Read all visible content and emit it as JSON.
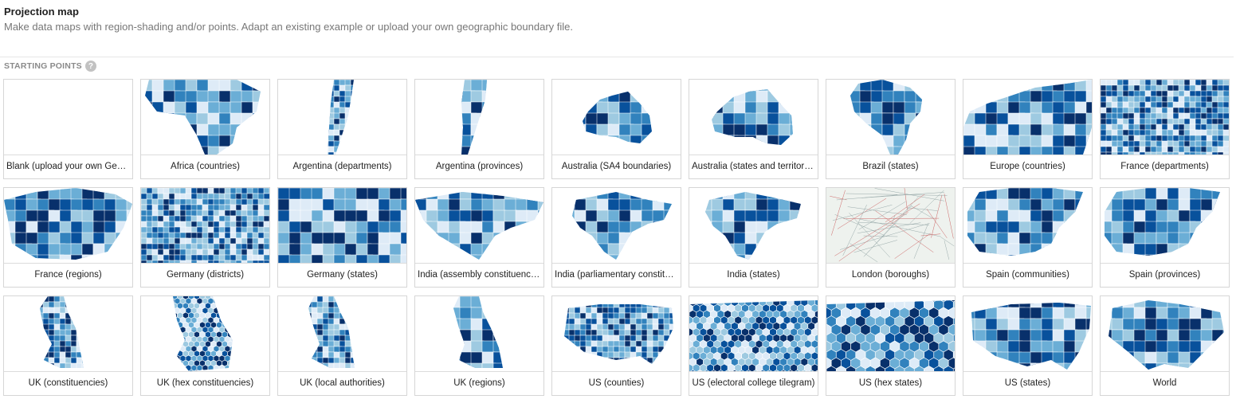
{
  "header": {
    "title": "Projection map",
    "subtitle": "Make data maps with region-shading and/or points. Adapt an existing example or upload your own geographic boundary file."
  },
  "section": {
    "label": "STARTING POINTS",
    "help_icon": "?"
  },
  "colors": {
    "light": "#deebf7",
    "mid_light": "#9ecae1",
    "mid": "#6baed6",
    "mid_dark": "#3182bd",
    "dark": "#08519c",
    "darkest": "#08306b"
  },
  "maps": [
    {
      "label": "Blank (upload your own GeoJSON)",
      "thumb": "blank"
    },
    {
      "label": "Africa (countries)",
      "thumb": "africa"
    },
    {
      "label": "Argentina (departments)",
      "thumb": "argentina-dept"
    },
    {
      "label": "Argentina (provinces)",
      "thumb": "argentina-prov"
    },
    {
      "label": "Australia (SA4 boundaries)",
      "thumb": "aus-sa4"
    },
    {
      "label": "Australia (states and territories)",
      "thumb": "aus-states"
    },
    {
      "label": "Brazil (states)",
      "thumb": "brazil"
    },
    {
      "label": "Europe (countries)",
      "thumb": "europe"
    },
    {
      "label": "France (departments)",
      "thumb": "france-dept"
    },
    {
      "label": "France (regions)",
      "thumb": "france-reg"
    },
    {
      "label": "Germany (districts)",
      "thumb": "germany-dist"
    },
    {
      "label": "Germany (states)",
      "thumb": "germany-states"
    },
    {
      "label": "India (assembly constituencies)",
      "thumb": "india-assembly"
    },
    {
      "label": "India (parliamentary constituencies)",
      "thumb": "india-parl"
    },
    {
      "label": "India (states)",
      "thumb": "india-states"
    },
    {
      "label": "London (boroughs)",
      "thumb": "london"
    },
    {
      "label": "Spain (communities)",
      "thumb": "spain-comm"
    },
    {
      "label": "Spain (provinces)",
      "thumb": "spain-prov"
    },
    {
      "label": "UK (constituencies)",
      "thumb": "uk-const"
    },
    {
      "label": "UK (hex constituencies)",
      "thumb": "uk-hex"
    },
    {
      "label": "UK (local authorities)",
      "thumb": "uk-la"
    },
    {
      "label": "UK (regions)",
      "thumb": "uk-regions"
    },
    {
      "label": "US (counties)",
      "thumb": "us-counties"
    },
    {
      "label": "US (electoral college tilegram)",
      "thumb": "us-electoral"
    },
    {
      "label": "US (hex states)",
      "thumb": "us-hex"
    },
    {
      "label": "US (states)",
      "thumb": "us-states"
    },
    {
      "label": "World",
      "thumb": "world"
    }
  ]
}
